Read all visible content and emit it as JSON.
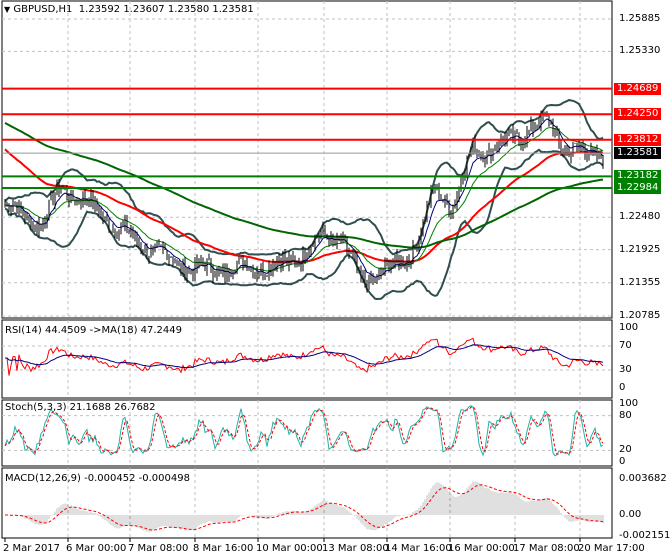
{
  "header": {
    "symbol": "GBPUSD,H1",
    "ohlc": "1.23592 1.23607 1.23580 1.23581"
  },
  "rsi": {
    "label": "RSI(14) 44.4509  ->MA(18) 47.2449",
    "ticks": [
      "100",
      "70",
      "30",
      "0"
    ]
  },
  "stoch": {
    "label": "Stoch(5,3,3) 21.1688 26.7682",
    "ticks": [
      "100",
      "80",
      "20",
      "0"
    ]
  },
  "macd": {
    "label": "MACD(12,26,9) -0.000452 -0.000498",
    "ticks": [
      "0.003682",
      "0.00",
      "-0.002151"
    ]
  },
  "price_axis": [
    "1.25885",
    "1.25330",
    "1.22480",
    "1.21925",
    "1.21355",
    "1.20785"
  ],
  "levels": [
    {
      "value": "1.24689",
      "color": "#ff0000"
    },
    {
      "value": "1.24250",
      "color": "#ff0000"
    },
    {
      "value": "1.23812",
      "color": "#ff0000"
    },
    {
      "value": "1.23182",
      "color": "#008000"
    },
    {
      "value": "1.22984",
      "color": "#008000"
    }
  ],
  "current_price": {
    "value": "1.23581",
    "color": "#000000"
  },
  "time_axis": [
    "2 Mar 2017",
    "6 Mar 00:00",
    "7 Mar 08:00",
    "8 Mar 16:00",
    "10 Mar 00:00",
    "13 Mar 08:00",
    "14 Mar 16:00",
    "16 Mar 00:00",
    "17 Mar 08:00",
    "20 Mar 17:00"
  ],
  "chart_data": {
    "type": "ohlc",
    "symbol": "GBPUSD",
    "timeframe": "H1",
    "ylim": [
      1.20785,
      1.25885
    ],
    "grid": true,
    "approx_closes": [
      1.2269,
      1.2252,
      1.2235,
      1.2303,
      1.228,
      1.226,
      1.223,
      1.2209,
      1.219,
      1.2175,
      1.2158,
      1.216,
      1.2158,
      1.2165,
      1.2162,
      1.217,
      1.2185,
      1.2218,
      1.221,
      1.214,
      1.215,
      1.2165,
      1.22,
      1.2295,
      1.227,
      1.2364,
      1.2365,
      1.2381,
      1.2398,
      1.2415,
      1.2364,
      1.236,
      1.2358
    ],
    "series_colors": {
      "bars": "#000000",
      "ma_red": "#ff0000",
      "ma_green": "#006400",
      "bollinger": "#2f4f4f",
      "rsi": "#ff0000",
      "rsi_ma": "#000080",
      "stoch_main": "#20b2aa",
      "stoch_signal": "#ff0000",
      "macd_hist": "#c0c0c0",
      "macd_signal": "#ff0000"
    }
  }
}
